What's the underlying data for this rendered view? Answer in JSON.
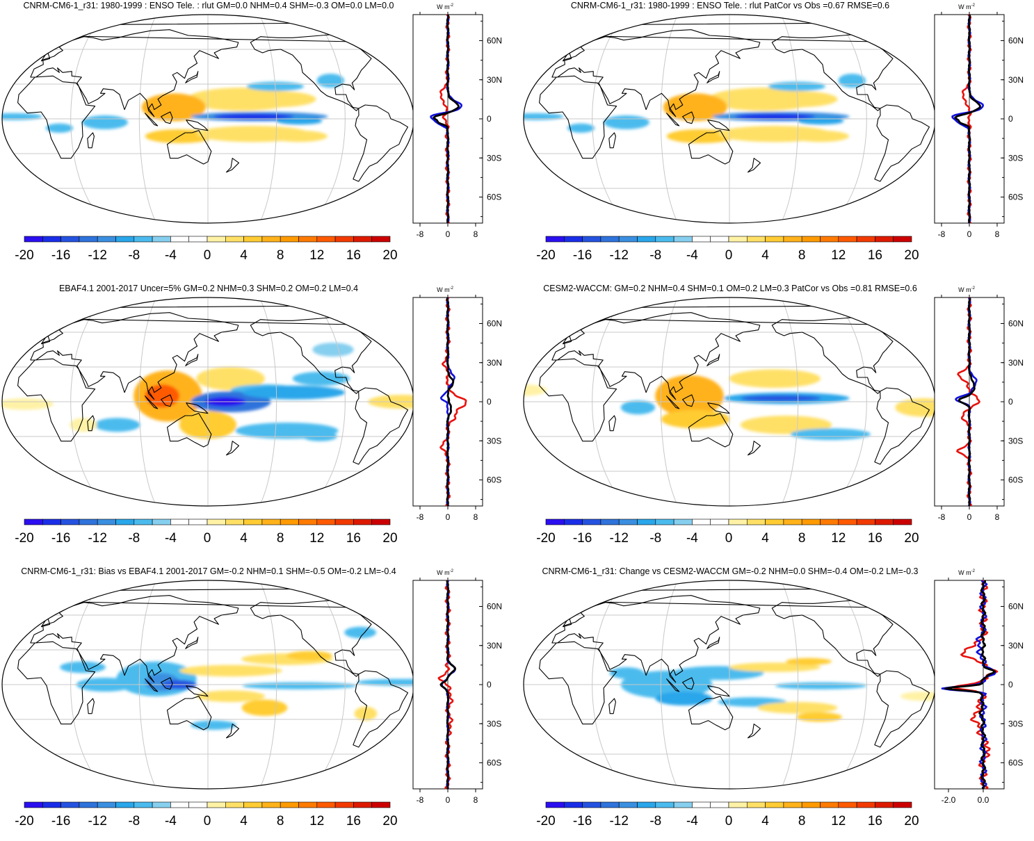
{
  "panels": [
    {
      "title": "CNRM-CM6-1_r31: 1980-1999 : ENSO Tele. : rlut GM=0.0 NHM=0.4 SHM=-0.3 OM=0.0 LM=0.0",
      "profile_xticks": [
        "-8",
        "0",
        "8"
      ],
      "profile_xvals": [
        -8,
        0,
        8
      ],
      "profile_xlim": [
        -10,
        10
      ]
    },
    {
      "title": "CNRM-CM6-1_r31: 1980-1999 : ENSO Tele. : rlut PatCor vs Obs =0.67 RMSE=0.6",
      "profile_xticks": [
        "-8",
        "0",
        "8"
      ],
      "profile_xvals": [
        -8,
        0,
        8
      ],
      "profile_xlim": [
        -10,
        10
      ]
    },
    {
      "title": "EBAF4.1 2001-2017 Uncer=5% GM=0.2 NHM=0.3 SHM=0.2 OM=0.2 LM=0.4",
      "profile_xticks": [
        "-8",
        "0",
        "8"
      ],
      "profile_xvals": [
        -8,
        0,
        8
      ],
      "profile_xlim": [
        -10,
        10
      ]
    },
    {
      "title": "CESM2-WACCM: GM=0.2 NHM=0.4 SHM=0.1 OM=0.2 LM=0.3 PatCor vs Obs =0.81 RMSE=0.6",
      "profile_xticks": [
        "-8",
        "0",
        "8"
      ],
      "profile_xvals": [
        -8,
        0,
        8
      ],
      "profile_xlim": [
        -10,
        10
      ]
    },
    {
      "title": "CNRM-CM6-1_r31: Bias vs EBAF4.1 2001-2017 GM=-0.2 NHM=0.1 SHM=-0.5 OM=-0.2 LM=-0.4",
      "profile_xticks": [
        "-8",
        "0",
        "8"
      ],
      "profile_xvals": [
        -8,
        0,
        8
      ],
      "profile_xlim": [
        -10,
        10
      ]
    },
    {
      "title": "CNRM-CM6-1_r31: Change vs CESM2-WACCM GM=-0.2 NHM=0.0 SHM=-0.4 OM=-0.2 LM=-0.3",
      "profile_xticks": [
        "-2.0",
        "0.0"
      ],
      "profile_xvals": [
        -2.0,
        0.0
      ],
      "profile_xlim": [
        -2.8,
        1.2
      ]
    }
  ],
  "colorbar": {
    "labels": [
      "-20",
      "-16",
      "-12",
      "-8",
      "-4",
      "0",
      "4",
      "8",
      "12",
      "16",
      "20"
    ],
    "colors": [
      "#2b0ff0",
      "#1a2ee8",
      "#2553e0",
      "#2f73db",
      "#3a8fe0",
      "#2aa6ea",
      "#4bbbee",
      "#86cfef",
      "#ffffff",
      "#ffffff",
      "#fff2a6",
      "#ffe066",
      "#ffcc33",
      "#ffb21a",
      "#ff9a00",
      "#ff7a00",
      "#ff5a00",
      "#f23a00",
      "#dd1a00",
      "#cc0000"
    ]
  },
  "profile_ylabels": [
    "60N",
    "30N",
    "0",
    "30S",
    "60S"
  ],
  "profile_ylat": [
    60,
    30,
    0,
    -30,
    -60
  ],
  "profile_unit": "W m",
  "profile_unit_sup": "-2",
  "series_colors": {
    "land": "#e8120c",
    "ocean": "#1010dd",
    "total": "#000000"
  },
  "map_colors": {
    "grid": "#c8c8c8",
    "coast": "#000000"
  }
}
